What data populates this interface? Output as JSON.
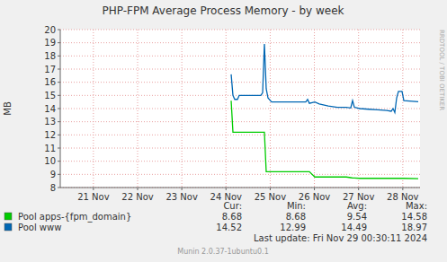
{
  "chart_data": {
    "type": "line",
    "title": "PHP-FPM Average Process Memory - by week",
    "y_label": "MB",
    "x": [
      24.617,
      24.657,
      24.698,
      24.759,
      24.8,
      25.288,
      25.329,
      25.369,
      25.41,
      25.451,
      25.532,
      26.306,
      26.346,
      26.387,
      26.509,
      26.611,
      26.814,
      27.018,
      27.221,
      27.323,
      27.364,
      27.404,
      27.527,
      27.73,
      27.934,
      28.137,
      28.239,
      28.28,
      28.32,
      28.361,
      28.402,
      28.483,
      28.524,
      28.849
    ],
    "series": [
      {
        "name": "Pool apps-{fpm_domain}",
        "color": "#00cc00",
        "values": [
          14.6,
          12.2,
          12.2,
          12.2,
          12.2,
          12.2,
          12.2,
          12.2,
          9.2,
          9.2,
          9.2,
          9.2,
          9.2,
          9.2,
          8.8,
          8.8,
          8.8,
          8.8,
          8.8,
          8.75,
          8.72,
          8.72,
          8.7,
          8.7,
          8.7,
          8.7,
          8.7,
          8.7,
          8.7,
          8.7,
          8.7,
          8.7,
          8.7,
          8.68
        ]
      },
      {
        "name": "Pool www",
        "color": "#0066b3",
        "values": [
          16.6,
          15.0,
          14.7,
          14.7,
          15.0,
          15.0,
          15.2,
          18.9,
          15.5,
          14.8,
          14.5,
          14.5,
          14.7,
          14.4,
          14.5,
          14.35,
          14.2,
          14.1,
          14.1,
          14.05,
          14.6,
          14.1,
          14.0,
          13.95,
          13.9,
          13.85,
          13.8,
          14.0,
          13.7,
          14.8,
          15.3,
          15.3,
          14.6,
          14.52
        ]
      }
    ],
    "xlim": [
      20.75,
      28.89
    ],
    "xticks": [
      {
        "value": 21.5,
        "label": "21 Nov"
      },
      {
        "value": 22.5,
        "label": "22 Nov"
      },
      {
        "value": 23.5,
        "label": "23 Nov"
      },
      {
        "value": 24.5,
        "label": "24 Nov"
      },
      {
        "value": 25.5,
        "label": "25 Nov"
      },
      {
        "value": 26.5,
        "label": "26 Nov"
      },
      {
        "value": 27.5,
        "label": "27 Nov"
      },
      {
        "value": 28.5,
        "label": "28 Nov"
      }
    ],
    "ylim": [
      8,
      20
    ],
    "yticks": [
      8,
      9,
      10,
      11,
      12,
      13,
      14,
      15,
      16,
      17,
      18,
      19,
      20
    ],
    "grid": true,
    "legend_stats": {
      "headers": [
        "Cur:",
        "Min:",
        "Avg:",
        "Max:"
      ],
      "rows": [
        [
          8.68,
          8.68,
          9.54,
          14.58
        ],
        [
          14.52,
          12.99,
          14.49,
          18.97
        ]
      ]
    },
    "last_update": "Last update: Fri Nov 29 00:30:11 2024",
    "footer": "Munin 2.0.37-1ubuntu0.1",
    "watermark": "RRDTOOL / TOBI OETIKER"
  }
}
